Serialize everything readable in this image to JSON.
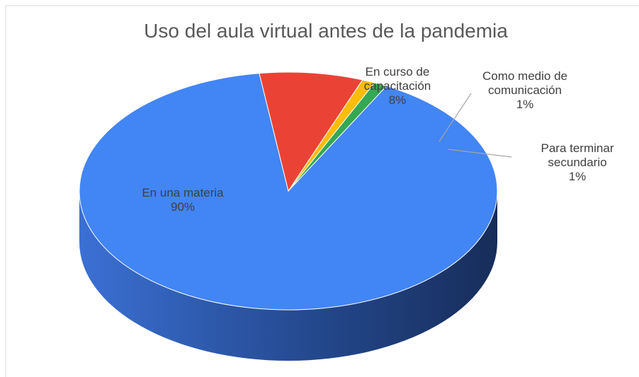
{
  "chart_data": {
    "type": "pie",
    "title": "Uso del aula virtual antes de la pandemia",
    "categories": [
      "En una materia",
      "En curso de capacitación",
      "Como medio de comunicación",
      "Para terminar secundario"
    ],
    "values": [
      90,
      8,
      1,
      1
    ],
    "value_labels": [
      "90%",
      "8%",
      "1%",
      "1%"
    ],
    "colors": [
      "#4285f4",
      "#ea4335",
      "#fbbc04",
      "#34a853"
    ]
  }
}
